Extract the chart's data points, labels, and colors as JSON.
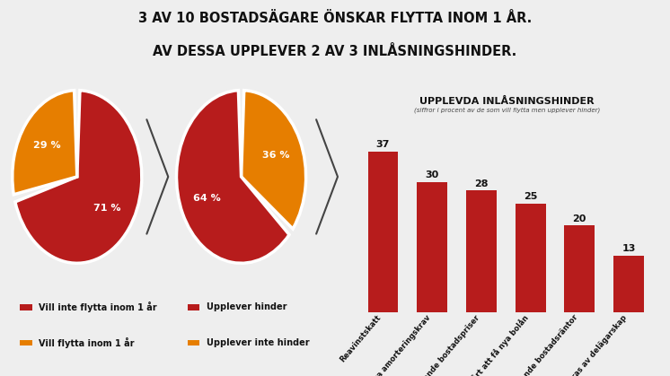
{
  "title_line1": "3 AV 10 BOSTADSÄGARE ÖNSKAR FLYTTA INOM 1 ÅR.",
  "title_line2": "AV DESSA UPPLEVER 2 AV 3 INLÅSNINGSHINDER.",
  "bg_color": "#eeeeee",
  "pie1": {
    "values": [
      71,
      29
    ],
    "colors": [
      "#b71c1c",
      "#e67e00"
    ],
    "labels": [
      "71 %",
      "29 %"
    ]
  },
  "pie2": {
    "values": [
      36,
      64
    ],
    "colors": [
      "#e67e00",
      "#b71c1c"
    ],
    "labels": [
      "36 %",
      "64 %"
    ]
  },
  "bar_values": [
    37,
    30,
    28,
    25,
    20,
    13
  ],
  "bar_labels": [
    "Reavinstskatt",
    "Nya amorteringskrav",
    "Sjunkande bostadspriser",
    "Svårt att få nya bolån",
    "Stigande bostadsräntor",
    "Hindras av delägarskap"
  ],
  "bar_color": "#b71c1c",
  "bar_chart_title": "UPPLEVDA INLÅSNINGSHINDER",
  "bar_chart_subtitle": "(siffror i procent av de som vill flytta men upplever hinder)",
  "legend1_items": [
    {
      "label": "Vill inte flytta inom 1 år",
      "color": "#b71c1c"
    },
    {
      "label": "Vill flytta inom 1 år",
      "color": "#e67e00"
    }
  ],
  "legend2_items": [
    {
      "label": "Upplever hinder",
      "color": "#b71c1c"
    },
    {
      "label": "Upplever inte hinder",
      "color": "#e67e00"
    }
  ],
  "arrow_color": "#444444",
  "label_color_white": "#ffffff",
  "label_color_dark": "#111111"
}
